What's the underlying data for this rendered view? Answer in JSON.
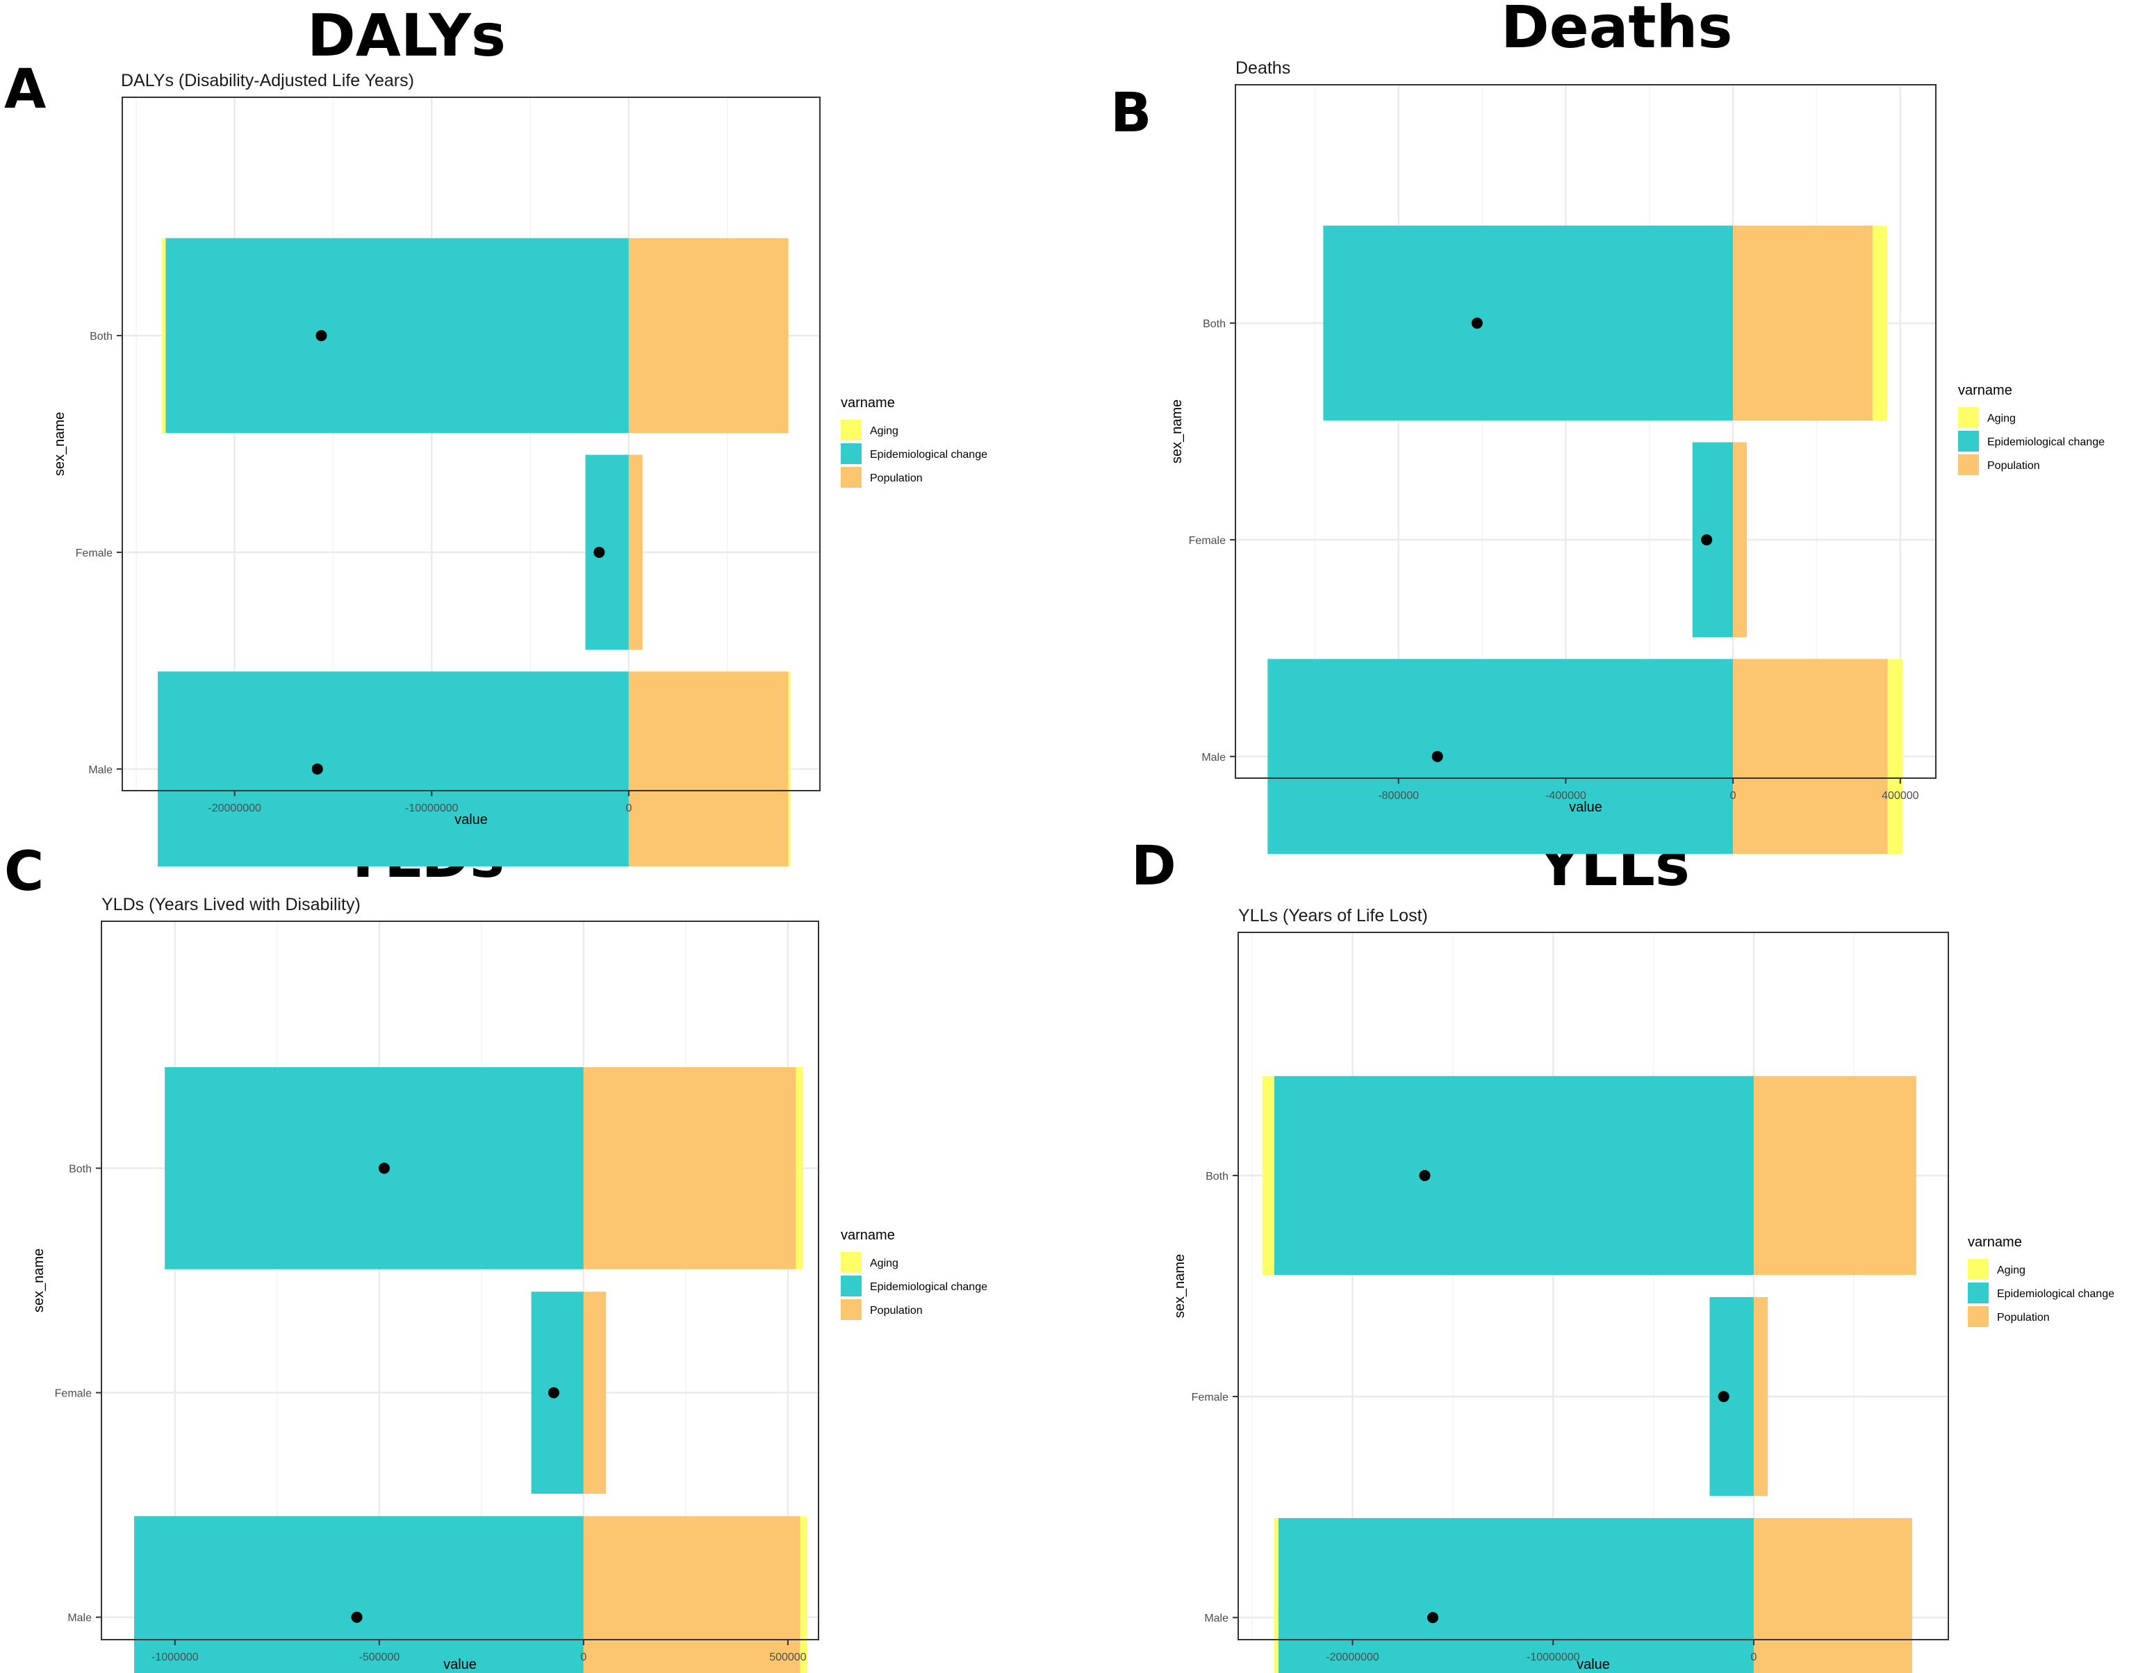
{
  "colors": {
    "aging": "#FFFF66",
    "epidemiological": "#33CCCC",
    "population": "#FCC671",
    "grid": "#EBEBEB",
    "point": "#000000",
    "border": "#333333"
  },
  "legend": {
    "title": "varname",
    "items": [
      "Aging",
      "Epidemiological change",
      "Population"
    ]
  },
  "chart_data": [
    {
      "panel": "A",
      "heading": "DALYs",
      "title": "DALYs (Disability-Adjusted Life Years)",
      "type": "bar",
      "orientation": "horizontal-stacked",
      "xlabel": "value",
      "ylabel": "sex_name",
      "categories": [
        "Both",
        "Female",
        "Male"
      ],
      "xlim": [
        -25700000,
        9700000
      ],
      "xticks": [
        -20000000,
        -10000000,
        0
      ],
      "xtick_labels": [
        "-20000000",
        "-10000000",
        "0"
      ],
      "series": [
        {
          "name": "Aging",
          "values": [
            -200000,
            0,
            100000
          ]
        },
        {
          "name": "Epidemiological change",
          "values": [
            -23500000,
            -2200000,
            -23900000
          ]
        },
        {
          "name": "Population",
          "values": [
            8100000,
            700000,
            8100000
          ]
        }
      ],
      "net_points": [
        -15600000,
        -1500000,
        -15800000
      ]
    },
    {
      "panel": "B",
      "heading": "Deaths",
      "title": "Deaths",
      "type": "bar",
      "orientation": "horizontal-stacked",
      "xlabel": "value",
      "ylabel": "sex_name",
      "categories": [
        "Both",
        "Female",
        "Male"
      ],
      "xlim": [
        -1190000,
        485000
      ],
      "xticks": [
        -800000,
        -400000,
        0,
        400000
      ],
      "xtick_labels": [
        "-800000",
        "-400000",
        "0",
        "400000"
      ],
      "series": [
        {
          "name": "Aging",
          "values": [
            35000,
            0,
            36000
          ]
        },
        {
          "name": "Epidemiological change",
          "values": [
            -980000,
            -97000,
            -1113000
          ]
        },
        {
          "name": "Population",
          "values": [
            334000,
            33000,
            370000
          ]
        }
      ],
      "net_points": [
        -612000,
        -63000,
        -707000
      ]
    },
    {
      "panel": "C",
      "heading": "YLDs",
      "title": "YLDs (Years Lived with Disability)",
      "type": "bar",
      "orientation": "horizontal-stacked",
      "xlabel": "value",
      "ylabel": "sex_name",
      "categories": [
        "Both",
        "Female",
        "Male"
      ],
      "xlim": [
        -1180000,
        575000
      ],
      "xticks": [
        -1000000,
        -500000,
        0,
        500000
      ],
      "xtick_labels": [
        "-1000000",
        "-500000",
        "0",
        "500000"
      ],
      "series": [
        {
          "name": "Aging",
          "values": [
            17000,
            0,
            16000
          ]
        },
        {
          "name": "Epidemiological change",
          "values": [
            -1025000,
            -128000,
            -1100000
          ]
        },
        {
          "name": "Population",
          "values": [
            520000,
            55000,
            530000
          ]
        }
      ],
      "net_points": [
        -488000,
        -73000,
        -555000
      ]
    },
    {
      "panel": "D",
      "heading": "YLLs",
      "title": "YLLs (Years of Life Lost)",
      "type": "bar",
      "orientation": "horizontal-stacked",
      "xlabel": "value",
      "ylabel": "sex_name",
      "categories": [
        "Both",
        "Female",
        "Male"
      ],
      "xlim": [
        -25700000,
        9700000
      ],
      "xticks": [
        -20000000,
        -10000000,
        0
      ],
      "xtick_labels": [
        "-20000000",
        "-10000000",
        "0"
      ],
      "series": [
        {
          "name": "Aging",
          "values": [
            -600000,
            0,
            -200000
          ]
        },
        {
          "name": "Epidemiological change",
          "values": [
            -23900000,
            -2200000,
            -23700000
          ]
        },
        {
          "name": "Population",
          "values": [
            8100000,
            700000,
            7900000
          ]
        }
      ],
      "net_points": [
        -16400000,
        -1500000,
        -16000000
      ]
    }
  ]
}
